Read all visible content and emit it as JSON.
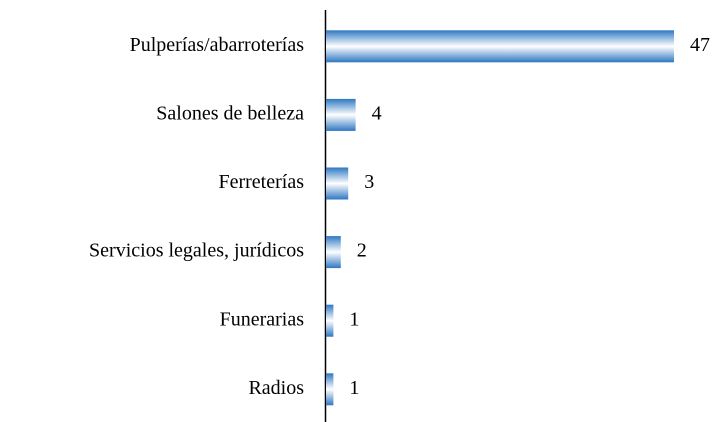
{
  "chart_data": {
    "type": "bar",
    "orientation": "horizontal",
    "categories": [
      "Pulperías/abarroterías",
      "Salones de belleza",
      "Ferreterías",
      "Servicios legales, jurídicos",
      "Funerarias",
      "Radios"
    ],
    "values": [
      47,
      4,
      3,
      2,
      1,
      1
    ],
    "color": "#2e78c2"
  }
}
